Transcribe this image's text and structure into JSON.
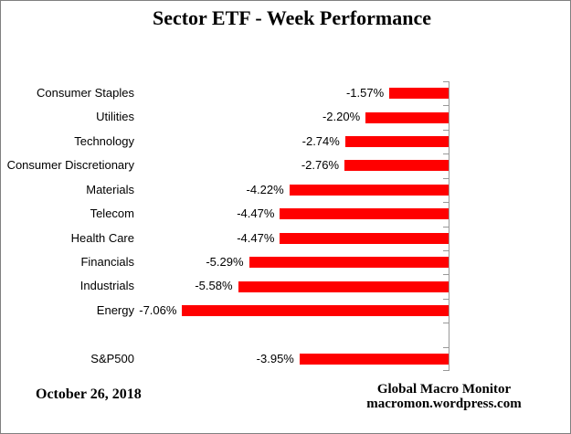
{
  "chart_data": {
    "type": "bar",
    "orientation": "horizontal",
    "title": "Sector ETF - Week Performance",
    "categories": [
      "Consumer Staples",
      "Utilities",
      "Technology",
      "Consumer Discretionary",
      "Materials",
      "Telecom",
      "Health Care",
      "Financials",
      "Industrials",
      "Energy",
      "S&P500"
    ],
    "values": [
      -1.57,
      -2.2,
      -2.74,
      -2.76,
      -4.22,
      -4.47,
      -4.47,
      -5.29,
      -5.58,
      -7.06,
      -3.95
    ],
    "data_labels": [
      "-1.57%",
      "-2.20%",
      "-2.74%",
      "-2.76%",
      "-4.22%",
      "-4.47%",
      "-4.47%",
      "-5.29%",
      "-5.58%",
      "-7.06%",
      "-3.95%"
    ],
    "gap_before_last_category": true,
    "xlim": [
      -8,
      0
    ],
    "grid": false,
    "legend": false,
    "bar_color": "#FF0000",
    "axis_color": "#999999",
    "text_color": "#000000",
    "frame_border_color": "#808080"
  },
  "footer": {
    "date": "October 26, 2018",
    "brand_line1": "Global Macro Monitor",
    "brand_line2": "macromon.wordpress.com"
  }
}
